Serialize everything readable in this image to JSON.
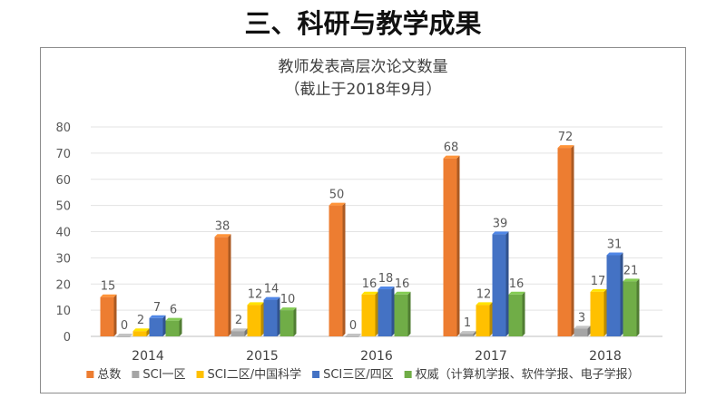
{
  "slide": {
    "title": "三、科研与教学成果"
  },
  "chart_data": {
    "type": "bar",
    "title": "教师发表高层次论文数量",
    "subtitle": "（截止于2018年9月）",
    "categories": [
      "2014",
      "2015",
      "2016",
      "2017",
      "2018"
    ],
    "series": [
      {
        "name": "总数",
        "color": "#ED7D31",
        "values": [
          15,
          38,
          50,
          68,
          72
        ]
      },
      {
        "name": "SCI一区",
        "color": "#A5A5A5",
        "values": [
          0,
          2,
          0,
          1,
          3
        ]
      },
      {
        "name": "SCI二区/中国科学",
        "color": "#FFC000",
        "values": [
          2,
          12,
          16,
          12,
          17
        ]
      },
      {
        "name": "SCI三区/四区",
        "color": "#4472C4",
        "values": [
          7,
          14,
          18,
          39,
          31
        ]
      },
      {
        "name": "权威（计算机学报、软件学报、电子学报）",
        "color": "#70AD47",
        "values": [
          6,
          10,
          16,
          16,
          21
        ]
      }
    ],
    "yticks": [
      0,
      10,
      20,
      30,
      40,
      50,
      60,
      70,
      80
    ],
    "ylim": [
      0,
      80
    ],
    "grid": true,
    "legend": "bottom",
    "data_labels": true,
    "style": "3d-bar"
  }
}
